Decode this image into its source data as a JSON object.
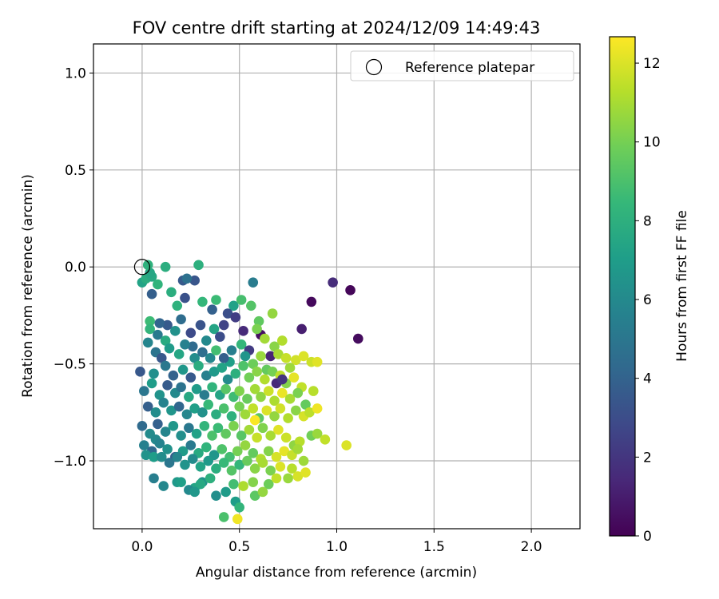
{
  "chart_data": {
    "type": "scatter",
    "title": "FOV centre drift starting at 2024/12/09 14:49:43",
    "xlabel": "Angular distance from reference (arcmin)",
    "ylabel": "Rotation from reference (arcmin)",
    "xlim": [
      -0.25,
      2.25
    ],
    "ylim": [
      -1.35,
      1.15
    ],
    "xticks": [
      0.0,
      0.5,
      1.0,
      1.5,
      2.0
    ],
    "xtick_labels": [
      "0.0",
      "0.5",
      "1.0",
      "1.5",
      "2.0"
    ],
    "yticks": [
      1.0,
      0.5,
      0.0,
      -0.5,
      -1.0
    ],
    "ytick_labels": [
      "1.0",
      "0.5",
      "0.0",
      "−0.5",
      "−1.0"
    ],
    "grid": true,
    "legend": {
      "position": "top-right",
      "entries": [
        {
          "label": "Reference platepar",
          "marker": "open-circle",
          "x": 0.0,
          "y": 0.0
        }
      ]
    },
    "colorbar": {
      "label": "Hours from first FF file",
      "colormap": "viridis",
      "min": 0,
      "max": 12.67,
      "ticks": [
        0,
        2,
        4,
        6,
        8,
        10,
        12
      ],
      "tick_labels": [
        "0",
        "2",
        "4",
        "6",
        "8",
        "10",
        "12"
      ]
    },
    "colormap_stops": [
      "#440154",
      "#482878",
      "#3e4989",
      "#31688e",
      "#26828e",
      "#1f9e89",
      "#35b779",
      "#6ece58",
      "#b5de2b",
      "#fde725"
    ],
    "points": [
      [
        0.0,
        -0.08,
        7.3
      ],
      [
        0.02,
        -0.06,
        7.8
      ],
      [
        0.05,
        -0.05,
        7.6
      ],
      [
        0.04,
        -0.03,
        7.5
      ],
      [
        0.08,
        -0.09,
        8.2
      ],
      [
        0.12,
        0.0,
        7.9
      ],
      [
        0.29,
        0.01,
        8.0
      ],
      [
        0.03,
        0.01,
        8.1
      ],
      [
        0.27,
        -0.07,
        3.4
      ],
      [
        0.21,
        -0.07,
        3.6
      ],
      [
        0.23,
        -0.06,
        4.7
      ],
      [
        0.57,
        -0.08,
        5.3
      ],
      [
        0.05,
        -0.14,
        3.8
      ],
      [
        0.15,
        -0.13,
        7.9
      ],
      [
        0.18,
        -0.2,
        8.1
      ],
      [
        0.22,
        -0.16,
        3.2
      ],
      [
        0.31,
        -0.18,
        8.4
      ],
      [
        0.38,
        -0.17,
        8.6
      ],
      [
        0.47,
        -0.2,
        7.2
      ],
      [
        0.51,
        -0.17,
        8.9
      ],
      [
        0.56,
        -0.2,
        9.2
      ],
      [
        0.44,
        -0.24,
        3.1
      ],
      [
        0.36,
        -0.22,
        3.9
      ],
      [
        0.3,
        -0.3,
        3.3
      ],
      [
        0.2,
        -0.27,
        4.5
      ],
      [
        0.13,
        -0.3,
        3.6
      ],
      [
        0.25,
        -0.34,
        2.9
      ],
      [
        0.42,
        -0.3,
        2.6
      ],
      [
        0.48,
        -0.26,
        2.3
      ],
      [
        0.6,
        -0.28,
        9.5
      ],
      [
        0.67,
        -0.24,
        10.6
      ],
      [
        0.37,
        -0.32,
        7.4
      ],
      [
        0.98,
        -0.08,
        1.6
      ],
      [
        1.07,
        -0.12,
        0.2
      ],
      [
        0.87,
        -0.18,
        0.3
      ],
      [
        0.82,
        -0.32,
        1.1
      ],
      [
        1.11,
        -0.37,
        0.4
      ],
      [
        0.61,
        -0.35,
        0.5
      ],
      [
        0.52,
        -0.33,
        1.5
      ],
      [
        0.04,
        -0.28,
        8.6
      ],
      [
        0.04,
        -0.32,
        8.3
      ],
      [
        0.08,
        -0.35,
        5.2
      ],
      [
        0.09,
        -0.29,
        4.1
      ],
      [
        0.12,
        -0.38,
        7.7
      ],
      [
        0.17,
        -0.33,
        6.4
      ],
      [
        0.26,
        -0.41,
        4.4
      ],
      [
        0.33,
        -0.38,
        6.0
      ],
      [
        0.4,
        -0.36,
        3.0
      ],
      [
        0.46,
        -0.43,
        5.4
      ],
      [
        0.51,
        -0.4,
        8.4
      ],
      [
        0.55,
        -0.43,
        2.2
      ],
      [
        0.59,
        -0.32,
        10.1
      ],
      [
        0.63,
        -0.37,
        10.9
      ],
      [
        0.68,
        -0.41,
        10.4
      ],
      [
        0.72,
        -0.38,
        11.2
      ],
      [
        0.66,
        -0.46,
        1.3
      ],
      [
        0.53,
        -0.46,
        6.6
      ],
      [
        0.45,
        -0.49,
        7.1
      ],
      [
        0.03,
        -0.39,
        5.8
      ],
      [
        0.07,
        -0.44,
        4.9
      ],
      [
        0.1,
        -0.47,
        3.5
      ],
      [
        0.14,
        -0.42,
        6.9
      ],
      [
        0.19,
        -0.45,
        7.5
      ],
      [
        0.22,
        -0.4,
        5.6
      ],
      [
        0.27,
        -0.47,
        6.2
      ],
      [
        0.31,
        -0.44,
        4.6
      ],
      [
        0.35,
        -0.47,
        5.9
      ],
      [
        0.38,
        -0.43,
        8.8
      ],
      [
        0.42,
        -0.47,
        3.8
      ],
      [
        0.57,
        -0.5,
        9.8
      ],
      [
        0.61,
        -0.46,
        10.7
      ],
      [
        0.7,
        -0.45,
        11.0
      ],
      [
        0.74,
        -0.47,
        11.6
      ],
      [
        0.79,
        -0.48,
        11.8
      ],
      [
        0.83,
        -0.46,
        12.0
      ],
      [
        0.87,
        -0.49,
        11.7
      ],
      [
        0.9,
        -0.49,
        12.1
      ],
      [
        0.76,
        -0.52,
        10.8
      ],
      [
        0.64,
        -0.53,
        9.6
      ],
      [
        -0.01,
        -0.54,
        3.5
      ],
      [
        0.06,
        -0.55,
        6.3
      ],
      [
        0.12,
        -0.51,
        5.1
      ],
      [
        0.16,
        -0.56,
        4.0
      ],
      [
        0.21,
        -0.53,
        6.7
      ],
      [
        0.25,
        -0.57,
        3.6
      ],
      [
        0.29,
        -0.51,
        7.8
      ],
      [
        0.33,
        -0.56,
        5.5
      ],
      [
        0.37,
        -0.54,
        6.8
      ],
      [
        0.41,
        -0.52,
        7.3
      ],
      [
        0.44,
        -0.58,
        6.1
      ],
      [
        0.48,
        -0.55,
        8.0
      ],
      [
        0.52,
        -0.51,
        9.1
      ],
      [
        0.55,
        -0.57,
        9.9
      ],
      [
        0.59,
        -0.54,
        10.4
      ],
      [
        0.63,
        -0.58,
        11.2
      ],
      [
        0.67,
        -0.54,
        10.0
      ],
      [
        0.71,
        -0.56,
        11.4
      ],
      [
        0.74,
        -0.6,
        10.3
      ],
      [
        0.78,
        -0.57,
        12.2
      ],
      [
        0.82,
        -0.62,
        11.5
      ],
      [
        0.69,
        -0.6,
        1.5
      ],
      [
        0.72,
        -0.58,
        1.9
      ],
      [
        0.01,
        -0.64,
        5.0
      ],
      [
        0.05,
        -0.6,
        7.0
      ],
      [
        0.09,
        -0.66,
        6.5
      ],
      [
        0.13,
        -0.61,
        3.7
      ],
      [
        0.17,
        -0.65,
        6.0
      ],
      [
        0.2,
        -0.62,
        4.8
      ],
      [
        0.24,
        -0.67,
        7.6
      ],
      [
        0.28,
        -0.63,
        6.9
      ],
      [
        0.32,
        -0.66,
        5.3
      ],
      [
        0.36,
        -0.62,
        8.2
      ],
      [
        0.4,
        -0.66,
        7.4
      ],
      [
        0.43,
        -0.63,
        9.3
      ],
      [
        0.47,
        -0.67,
        8.7
      ],
      [
        0.5,
        -0.64,
        10.2
      ],
      [
        0.54,
        -0.68,
        9.7
      ],
      [
        0.58,
        -0.63,
        10.9
      ],
      [
        0.61,
        -0.67,
        10.5
      ],
      [
        0.65,
        -0.64,
        11.7
      ],
      [
        0.68,
        -0.69,
        11.1
      ],
      [
        0.72,
        -0.65,
        12.3
      ],
      [
        0.76,
        -0.68,
        11.0
      ],
      [
        0.8,
        -0.65,
        10.1
      ],
      [
        0.84,
        -0.71,
        9.6
      ],
      [
        0.88,
        -0.64,
        11.3
      ],
      [
        0.03,
        -0.72,
        3.8
      ],
      [
        0.07,
        -0.75,
        6.2
      ],
      [
        0.11,
        -0.7,
        5.7
      ],
      [
        0.15,
        -0.74,
        6.6
      ],
      [
        0.19,
        -0.72,
        4.2
      ],
      [
        0.23,
        -0.76,
        5.9
      ],
      [
        0.27,
        -0.73,
        7.1
      ],
      [
        0.31,
        -0.75,
        6.4
      ],
      [
        0.34,
        -0.71,
        8.5
      ],
      [
        0.38,
        -0.76,
        7.8
      ],
      [
        0.42,
        -0.73,
        9.0
      ],
      [
        0.46,
        -0.77,
        8.1
      ],
      [
        0.5,
        -0.72,
        10.0
      ],
      [
        0.53,
        -0.76,
        10.8
      ],
      [
        0.57,
        -0.73,
        11.5
      ],
      [
        0.6,
        -0.78,
        9.4
      ],
      [
        0.64,
        -0.74,
        12.0
      ],
      [
        0.68,
        -0.77,
        10.6
      ],
      [
        0.71,
        -0.73,
        11.8
      ],
      [
        0.75,
        -0.78,
        11.2
      ],
      [
        0.79,
        -0.74,
        10.4
      ],
      [
        0.83,
        -0.77,
        11.9
      ],
      [
        0.86,
        -0.75,
        11.4
      ],
      [
        0.9,
        -0.73,
        12.4
      ],
      [
        0.58,
        -0.79,
        12.6
      ],
      [
        0.0,
        -0.82,
        4.4
      ],
      [
        0.04,
        -0.86,
        6.1
      ],
      [
        0.08,
        -0.81,
        3.9
      ],
      [
        0.12,
        -0.85,
        5.8
      ],
      [
        0.16,
        -0.82,
        6.7
      ],
      [
        0.2,
        -0.87,
        6.3
      ],
      [
        0.24,
        -0.83,
        5.1
      ],
      [
        0.28,
        -0.86,
        7.2
      ],
      [
        0.32,
        -0.82,
        8.3
      ],
      [
        0.36,
        -0.87,
        9.0
      ],
      [
        0.39,
        -0.83,
        8.6
      ],
      [
        0.43,
        -0.86,
        9.5
      ],
      [
        0.47,
        -0.82,
        10.1
      ],
      [
        0.51,
        -0.87,
        9.3
      ],
      [
        0.55,
        -0.84,
        10.9
      ],
      [
        0.59,
        -0.88,
        11.6
      ],
      [
        0.62,
        -0.83,
        10.2
      ],
      [
        0.66,
        -0.87,
        11.0
      ],
      [
        0.7,
        -0.84,
        12.1
      ],
      [
        0.74,
        -0.88,
        11.7
      ],
      [
        0.78,
        -0.92,
        10.5
      ],
      [
        0.81,
        -0.9,
        11.3
      ],
      [
        0.87,
        -0.87,
        9.9
      ],
      [
        0.9,
        -0.86,
        10.7
      ],
      [
        0.94,
        -0.89,
        11.5
      ],
      [
        1.05,
        -0.92,
        12.0
      ],
      [
        0.07,
        -0.89,
        6.0
      ],
      [
        0.01,
        -0.92,
        5.5
      ],
      [
        0.05,
        -0.95,
        4.3
      ],
      [
        0.09,
        -0.91,
        5.7
      ],
      [
        0.13,
        -0.94,
        6.4
      ],
      [
        0.17,
        -0.98,
        3.7
      ],
      [
        0.21,
        -0.95,
        6.9
      ],
      [
        0.25,
        -0.92,
        5.2
      ],
      [
        0.29,
        -0.96,
        7.7
      ],
      [
        0.33,
        -0.93,
        8.2
      ],
      [
        0.37,
        -0.97,
        6.6
      ],
      [
        0.41,
        -0.94,
        9.1
      ],
      [
        0.45,
        -0.98,
        8.8
      ],
      [
        0.49,
        -0.95,
        10.0
      ],
      [
        0.53,
        -0.92,
        10.6
      ],
      [
        0.57,
        -0.96,
        9.6
      ],
      [
        0.61,
        -0.99,
        11.2
      ],
      [
        0.65,
        -0.95,
        10.3
      ],
      [
        0.69,
        -0.98,
        11.9
      ],
      [
        0.73,
        -0.95,
        12.2
      ],
      [
        0.77,
        -0.97,
        11.6
      ],
      [
        0.8,
        -0.94,
        10.9
      ],
      [
        0.02,
        -0.97,
        6.5
      ],
      [
        0.06,
        -0.98,
        7.0
      ],
      [
        0.1,
        -0.98,
        6.2
      ],
      [
        0.14,
        -1.01,
        5.0
      ],
      [
        0.18,
        -0.98,
        5.8
      ],
      [
        0.22,
        -1.02,
        6.5
      ],
      [
        0.26,
        -0.99,
        6.1
      ],
      [
        0.3,
        -1.03,
        7.3
      ],
      [
        0.34,
        -1.0,
        6.8
      ],
      [
        0.38,
        -1.04,
        7.9
      ],
      [
        0.42,
        -1.01,
        8.5
      ],
      [
        0.46,
        -1.05,
        9.2
      ],
      [
        0.5,
        -1.02,
        8.4
      ],
      [
        0.54,
        -1.0,
        9.7
      ],
      [
        0.58,
        -1.04,
        10.4
      ],
      [
        0.62,
        -1.01,
        11.0
      ],
      [
        0.66,
        -1.05,
        10.1
      ],
      [
        0.71,
        -1.03,
        12.0
      ],
      [
        0.77,
        -1.04,
        11.3
      ],
      [
        0.83,
        -1.0,
        10.8
      ],
      [
        0.06,
        -1.09,
        5.4
      ],
      [
        0.11,
        -1.13,
        5.9
      ],
      [
        0.18,
        -1.11,
        6.8
      ],
      [
        0.2,
        -1.11,
        7.1
      ],
      [
        0.27,
        -1.14,
        7.4
      ],
      [
        0.31,
        -1.11,
        6.5
      ],
      [
        0.35,
        -1.09,
        8.0
      ],
      [
        0.3,
        -1.12,
        7.6
      ],
      [
        0.43,
        -1.16,
        6.9
      ],
      [
        0.47,
        -1.12,
        8.8
      ],
      [
        0.52,
        -1.13,
        11.1
      ],
      [
        0.57,
        -1.11,
        10.3
      ],
      [
        0.65,
        -1.12,
        9.8
      ],
      [
        0.69,
        -1.09,
        11.5
      ],
      [
        0.75,
        -1.09,
        10.7
      ],
      [
        0.8,
        -1.08,
        11.9
      ],
      [
        0.84,
        -1.06,
        12.1
      ],
      [
        0.24,
        -1.15,
        6.0
      ],
      [
        0.27,
        -1.16,
        6.7
      ],
      [
        0.58,
        -1.18,
        9.4
      ],
      [
        0.48,
        -1.21,
        7.0
      ],
      [
        0.5,
        -1.24,
        8.3
      ],
      [
        0.42,
        -1.29,
        9.0
      ],
      [
        0.49,
        -1.3,
        12.4
      ],
      [
        0.62,
        -1.16,
        10.6
      ],
      [
        0.38,
        -1.18,
        6.3
      ]
    ]
  }
}
